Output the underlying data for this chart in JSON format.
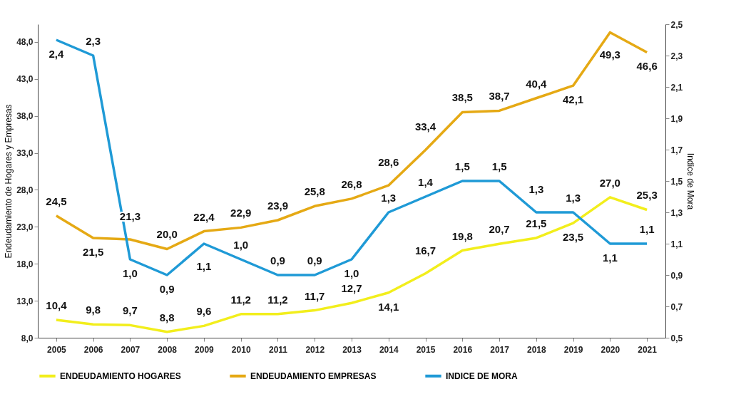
{
  "chart_data": {
    "type": "line",
    "categories": [
      "2005",
      "2006",
      "2007",
      "2008",
      "2009",
      "2010",
      "2011",
      "2012",
      "2013",
      "2014",
      "2015",
      "2016",
      "2017",
      "2018",
      "2019",
      "2020",
      "2021"
    ],
    "series": [
      {
        "name": "ENDEUDAMIENTO HOGARES",
        "color": "#f2ee1c",
        "axis": "y",
        "values": [
          10.4,
          9.8,
          9.7,
          8.8,
          9.6,
          11.2,
          11.2,
          11.7,
          12.7,
          14.1,
          16.7,
          19.8,
          20.7,
          21.5,
          23.5,
          27.0,
          25.3
        ],
        "value_labels": [
          "10,4",
          "9,8",
          "9,7",
          "8,8",
          "9,6",
          "11,2",
          "11,2",
          "11,7",
          "12,7",
          "14,1",
          "16,7",
          "19,8",
          "20,7",
          "21,5",
          "23,5",
          "27,0",
          "25,3"
        ]
      },
      {
        "name": "ENDEUDAMIENTO EMPRESAS",
        "color": "#e5a914",
        "axis": "y",
        "values": [
          24.5,
          21.5,
          21.3,
          20.0,
          22.4,
          22.9,
          23.9,
          25.8,
          26.8,
          28.6,
          33.4,
          38.5,
          38.7,
          40.4,
          42.1,
          49.3,
          46.6
        ],
        "value_labels": [
          "24,5",
          "21,5",
          "21,3",
          "20,0",
          "22,4",
          "22,9",
          "23,9",
          "25,8",
          "26,8",
          "28,6",
          "33,4",
          "38,5",
          "38,7",
          "40,4",
          "42,1",
          "49,3",
          "46,6"
        ]
      },
      {
        "name": "INDICE DE MORA",
        "color": "#1f9ad6",
        "axis": "y2",
        "values": [
          2.4,
          2.3,
          1.0,
          0.9,
          1.1,
          1.0,
          0.9,
          0.9,
          1.0,
          1.3,
          1.4,
          1.5,
          1.5,
          1.3,
          1.3,
          1.1,
          1.1
        ],
        "value_labels": [
          "2,4",
          "2,3",
          "1,0",
          "0,9",
          "1,1",
          "1,0",
          "0,9",
          "0,9",
          "1,0",
          "1,3",
          "1,4",
          "1,5",
          "1,5",
          "1,3",
          "1,3",
          "1,1",
          "1,1"
        ]
      }
    ],
    "ylabel": "Endeudamiento de Hogares y Empresas",
    "y2label": "Indice de Mora",
    "ylim": [
      8,
      50.4
    ],
    "yticks": [
      {
        "value": 8,
        "label": "8,0"
      },
      {
        "value": 13,
        "label": "13,0"
      },
      {
        "value": 18,
        "label": "18,0"
      },
      {
        "value": 23,
        "label": "23,0"
      },
      {
        "value": 28,
        "label": "28,0"
      },
      {
        "value": 33,
        "label": "33,0"
      },
      {
        "value": 38,
        "label": "38,0"
      },
      {
        "value": 43,
        "label": "43,0"
      },
      {
        "value": 48,
        "label": "48,0"
      }
    ],
    "y2lim": [
      0.5,
      2.5
    ],
    "y2ticks": [
      {
        "value": 0.5,
        "label": "0,5"
      },
      {
        "value": 0.7,
        "label": "0,7"
      },
      {
        "value": 0.9,
        "label": "0,9"
      },
      {
        "value": 1.1,
        "label": "1,1"
      },
      {
        "value": 1.3,
        "label": "1,3"
      },
      {
        "value": 1.5,
        "label": "1,5"
      },
      {
        "value": 1.7,
        "label": "1,7"
      },
      {
        "value": 1.9,
        "label": "1,9"
      },
      {
        "value": 2.1,
        "label": "2,1"
      },
      {
        "value": 2.3,
        "label": "2,3"
      },
      {
        "value": 2.5,
        "label": "2,5"
      }
    ],
    "grid": false,
    "legend": "bottom"
  }
}
